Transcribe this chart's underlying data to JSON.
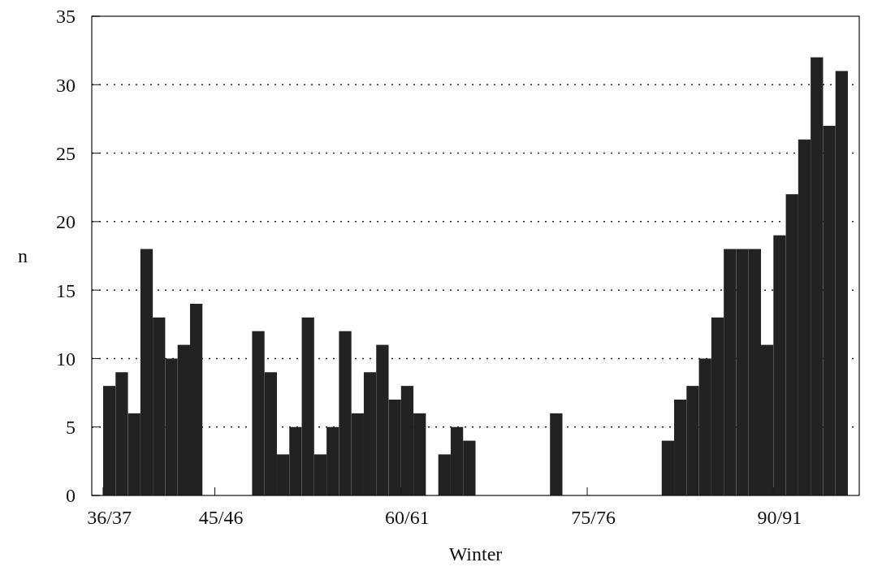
{
  "chart_data": {
    "type": "bar",
    "xlabel": "Winter",
    "ylabel": "n",
    "categories": [
      "36/37",
      null,
      null,
      null,
      null,
      null,
      null,
      null,
      null,
      "45/46",
      null,
      null,
      null,
      null,
      null,
      null,
      null,
      null,
      null,
      null,
      null,
      null,
      null,
      null,
      "60/61",
      null,
      null,
      null,
      null,
      null,
      null,
      null,
      null,
      null,
      null,
      null,
      null,
      null,
      null,
      "75/76",
      null,
      null,
      null,
      null,
      null,
      null,
      null,
      null,
      null,
      null,
      null,
      null,
      null,
      null,
      "90/91",
      null,
      null,
      null,
      null,
      null
    ],
    "values": [
      8,
      9,
      6,
      18,
      13,
      10,
      11,
      14,
      0,
      0,
      0,
      0,
      12,
      9,
      3,
      5,
      13,
      3,
      5,
      12,
      6,
      9,
      11,
      7,
      8,
      6,
      0,
      3,
      5,
      4,
      0,
      0,
      0,
      0,
      0,
      0,
      6,
      0,
      0,
      0,
      0,
      0,
      0,
      0,
      0,
      4,
      7,
      8,
      10,
      13,
      18,
      18,
      18,
      11,
      19,
      22,
      26,
      32,
      27,
      31
    ],
    "color": "#222222",
    "ylim": [
      0,
      35
    ],
    "yticks": [
      0,
      5,
      10,
      15,
      20,
      25,
      30,
      35
    ],
    "grid": "y"
  }
}
